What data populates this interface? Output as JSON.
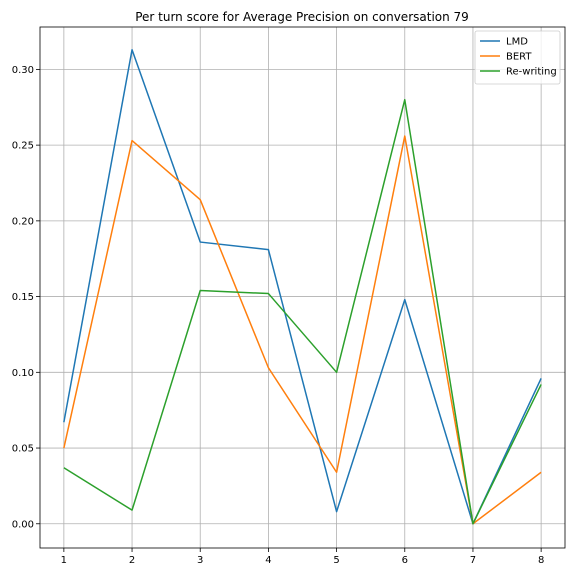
{
  "chart_data": {
    "type": "line",
    "title": "Per turn score for Average Precision on conversation 79",
    "xlabel": "",
    "ylabel": "",
    "x": [
      1,
      2,
      3,
      4,
      5,
      6,
      7,
      8
    ],
    "xlim": [
      0.65,
      8.35
    ],
    "ylim": [
      -0.016,
      0.328
    ],
    "xticks": [
      "1",
      "2",
      "3",
      "4",
      "5",
      "6",
      "7",
      "8"
    ],
    "yticks": [
      "0.00",
      "0.05",
      "0.10",
      "0.15",
      "0.20",
      "0.25",
      "0.30"
    ],
    "grid": true,
    "legend_position": "top-right",
    "series": [
      {
        "name": "LMD",
        "color": "#1f77b4",
        "values": [
          0.067,
          0.313,
          0.186,
          0.181,
          0.008,
          0.148,
          0.0,
          0.096
        ]
      },
      {
        "name": "BERT",
        "color": "#ff7f0e",
        "values": [
          0.05,
          0.253,
          0.214,
          0.103,
          0.034,
          0.256,
          0.0,
          0.034
        ]
      },
      {
        "name": "Re-writing",
        "color": "#2ca02c",
        "values": [
          0.037,
          0.009,
          0.154,
          0.152,
          0.1,
          0.28,
          0.0,
          0.092
        ]
      }
    ]
  }
}
